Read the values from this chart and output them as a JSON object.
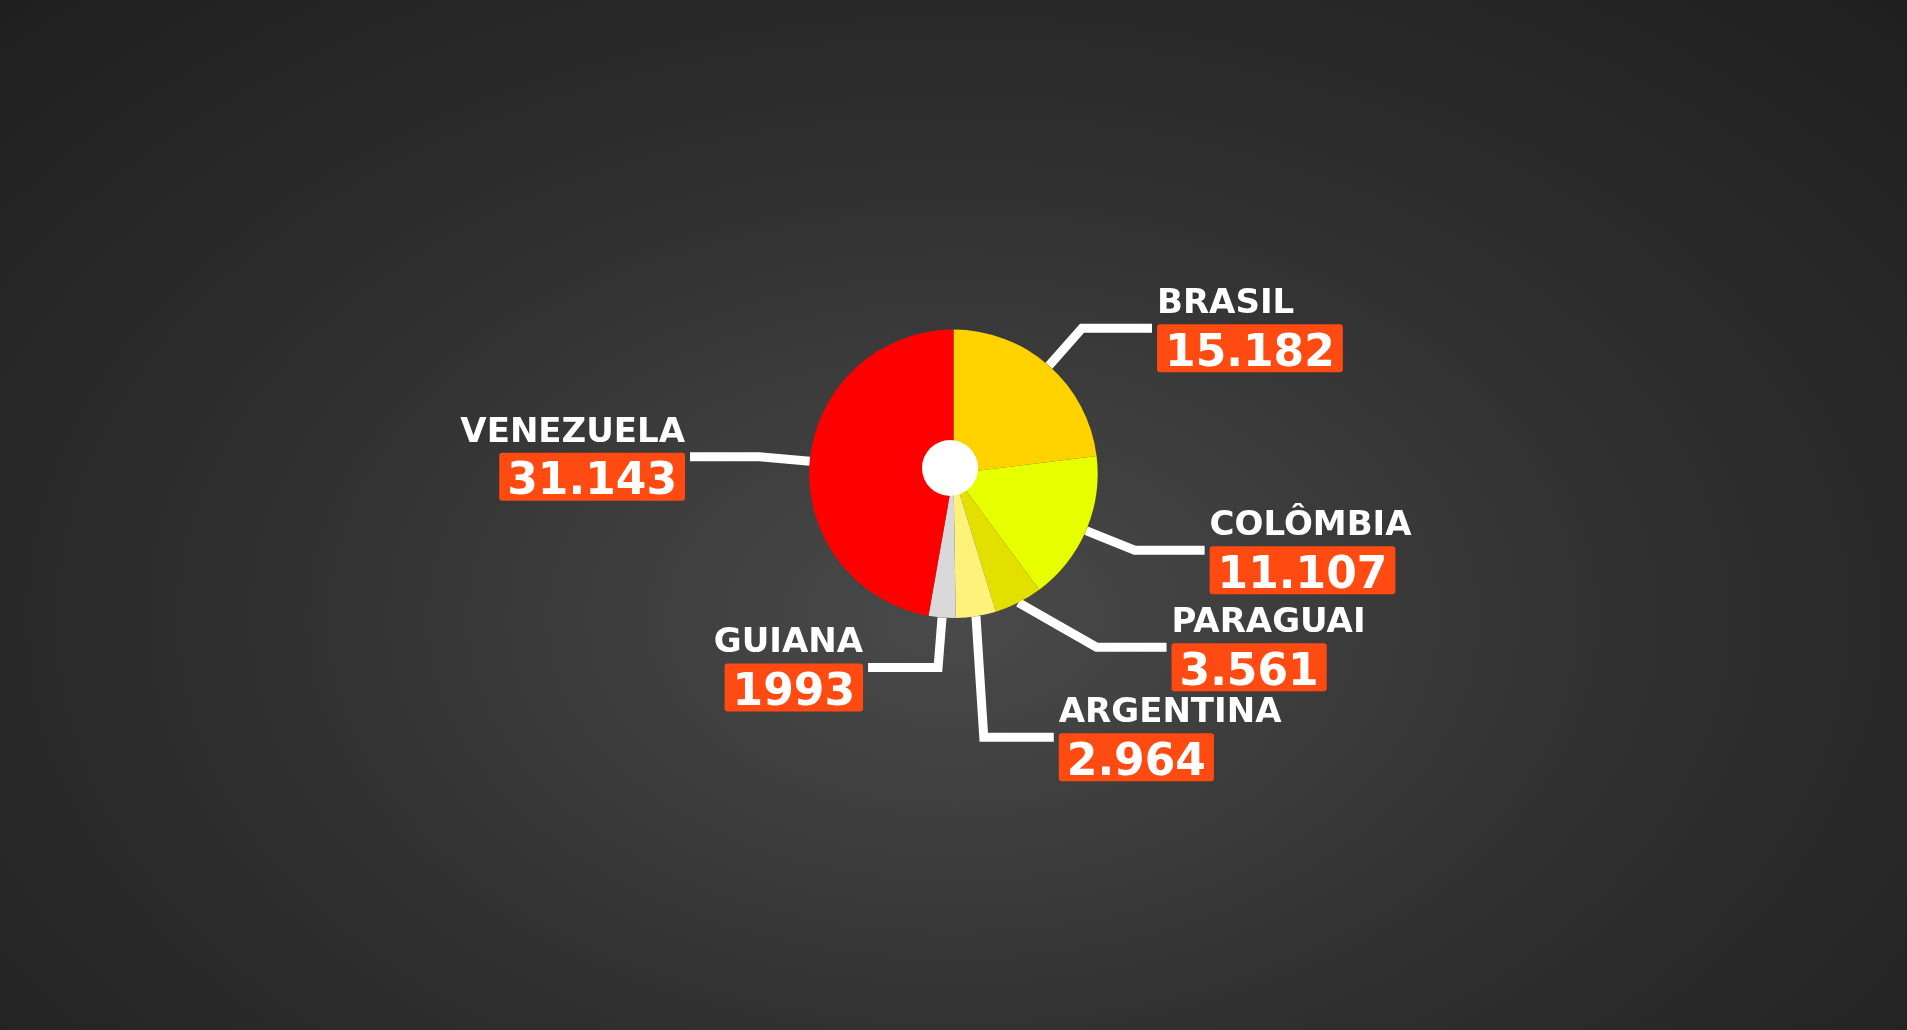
{
  "chart_data": {
    "type": "pie",
    "categories": [
      "BRASIL",
      "COLÔMBIA",
      "PARAGUAI",
      "ARGENTINA",
      "GUIANA",
      "VENEZUELA"
    ],
    "values": [
      15182,
      11107,
      3561,
      2964,
      1993,
      31143
    ],
    "value_labels": [
      "15.182",
      "11.107",
      "3.561",
      "2.964",
      "1993",
      "31.143"
    ],
    "colors": [
      "#ffd200",
      "#e8ff00",
      "#e3e000",
      "#fff27a",
      "#d9d9d9",
      "#ff0000"
    ]
  }
}
